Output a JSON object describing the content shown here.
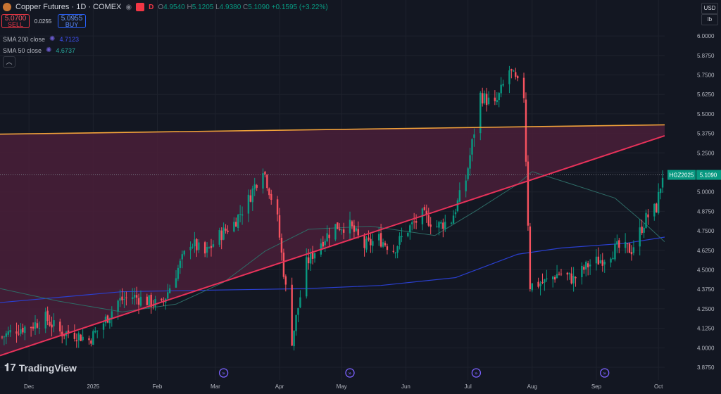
{
  "header": {
    "title": "Copper Futures · 1D · COMEX",
    "d_label": "D",
    "ohlc": {
      "o_k": "O",
      "o": "4.9540",
      "h_k": "H",
      "h": "5.1205",
      "l_k": "L",
      "l": "4.9380",
      "c_k": "C",
      "c": "5.1090",
      "chg": "+0.1595 (+3.22%)"
    }
  },
  "trade": {
    "sell_price": "5.0700",
    "sell_label": "SELL",
    "spread": "0.0255",
    "buy_price": "5.0955",
    "buy_label": "BUY"
  },
  "indicators": [
    {
      "label": "SMA 200 close",
      "value": "4.7123",
      "color": "#3f51f5"
    },
    {
      "label": "SMA 50 close",
      "value": "4.6737",
      "color": "#26a69a"
    }
  ],
  "units": {
    "currency": "USD",
    "unit": "lb"
  },
  "brand": "TradingView",
  "chart_data": {
    "type": "candlestick",
    "symbol_label": "HGZ2025",
    "last_price": "5.1090",
    "ylim": [
      3.83,
      6.05
    ],
    "y_ticks": [
      "6.0000",
      "5.8750",
      "5.7500",
      "5.6250",
      "5.5000",
      "5.3750",
      "5.2500",
      "5.1250",
      "5.0000",
      "4.8750",
      "4.7500",
      "4.6250",
      "4.5000",
      "4.3750",
      "4.2500",
      "4.1250",
      "4.0000",
      "3.8750"
    ],
    "x_ticks": [
      {
        "label": "Dec",
        "date": "2024-12-01"
      },
      {
        "label": "2025",
        "date": "2025-01-01"
      },
      {
        "label": "Feb",
        "date": "2025-02-01"
      },
      {
        "label": "Mar",
        "date": "2025-03-01"
      },
      {
        "label": "Apr",
        "date": "2025-04-01"
      },
      {
        "label": "May",
        "date": "2025-05-01"
      },
      {
        "label": "Jun",
        "date": "2025-06-01"
      },
      {
        "label": "Jul",
        "date": "2025-07-01"
      },
      {
        "label": "Aug",
        "date": "2025-08-01"
      },
      {
        "label": "Sep",
        "date": "2025-09-01"
      },
      {
        "label": "Oct",
        "date": "2025-10-01"
      }
    ],
    "date_range": [
      "2024-11-17",
      "2025-10-04"
    ],
    "event_markers": [
      "2025-03-05",
      "2025-05-05",
      "2025-07-05",
      "2025-09-05"
    ],
    "close_path": [
      [
        "2024-11-18",
        4.07
      ],
      [
        "2024-11-25",
        4.12
      ],
      [
        "2024-12-02",
        4.14
      ],
      [
        "2024-12-09",
        4.19
      ],
      [
        "2024-12-16",
        4.1
      ],
      [
        "2024-12-23",
        4.09
      ],
      [
        "2024-12-30",
        4.05
      ],
      [
        "2025-01-06",
        4.16
      ],
      [
        "2025-01-13",
        4.3
      ],
      [
        "2025-01-20",
        4.33
      ],
      [
        "2025-01-27",
        4.3
      ],
      [
        "2025-02-03",
        4.27
      ],
      [
        "2025-02-10",
        4.48
      ],
      [
        "2025-02-17",
        4.68
      ],
      [
        "2025-02-24",
        4.6
      ],
      [
        "2025-03-03",
        4.72
      ],
      [
        "2025-03-10",
        4.8
      ],
      [
        "2025-03-17",
        4.95
      ],
      [
        "2025-03-24",
        5.16
      ],
      [
        "2025-03-31",
        4.82
      ],
      [
        "2025-04-07",
        4.05
      ],
      [
        "2025-04-14",
        4.54
      ],
      [
        "2025-04-21",
        4.68
      ],
      [
        "2025-04-28",
        4.78
      ],
      [
        "2025-05-05",
        4.78
      ],
      [
        "2025-05-12",
        4.65
      ],
      [
        "2025-05-19",
        4.7
      ],
      [
        "2025-05-26",
        4.63
      ],
      [
        "2025-06-02",
        4.76
      ],
      [
        "2025-06-09",
        4.85
      ],
      [
        "2025-06-16",
        4.78
      ],
      [
        "2025-06-23",
        4.82
      ],
      [
        "2025-06-30",
        5.08
      ],
      [
        "2025-07-07",
        5.62
      ],
      [
        "2025-07-14",
        5.55
      ],
      [
        "2025-07-21",
        5.78
      ],
      [
        "2025-07-28",
        5.62
      ],
      [
        "2025-07-31",
        4.4
      ],
      [
        "2025-08-07",
        4.42
      ],
      [
        "2025-08-14",
        4.48
      ],
      [
        "2025-08-21",
        4.44
      ],
      [
        "2025-08-28",
        4.53
      ],
      [
        "2025-09-04",
        4.57
      ],
      [
        "2025-09-11",
        4.64
      ],
      [
        "2025-09-18",
        4.63
      ],
      [
        "2025-09-25",
        4.83
      ],
      [
        "2025-09-30",
        4.9
      ],
      [
        "2025-10-03",
        5.11
      ]
    ],
    "sma200": [
      [
        "2024-11-17",
        4.29
      ],
      [
        "2025-01-15",
        4.36
      ],
      [
        "2025-03-01",
        4.37
      ],
      [
        "2025-04-15",
        4.38
      ],
      [
        "2025-05-20",
        4.4
      ],
      [
        "2025-06-25",
        4.45
      ],
      [
        "2025-07-25",
        4.6
      ],
      [
        "2025-08-15",
        4.64
      ],
      [
        "2025-09-15",
        4.67
      ],
      [
        "2025-10-04",
        4.71
      ]
    ],
    "sma50": [
      [
        "2024-11-17",
        4.38
      ],
      [
        "2024-12-15",
        4.3
      ],
      [
        "2025-01-15",
        4.23
      ],
      [
        "2025-02-10",
        4.28
      ],
      [
        "2025-03-05",
        4.42
      ],
      [
        "2025-03-25",
        4.62
      ],
      [
        "2025-04-15",
        4.76
      ],
      [
        "2025-05-15",
        4.78
      ],
      [
        "2025-06-15",
        4.72
      ],
      [
        "2025-07-05",
        4.88
      ],
      [
        "2025-07-25",
        5.05
      ],
      [
        "2025-08-01",
        5.13
      ],
      [
        "2025-08-20",
        5.05
      ],
      [
        "2025-09-10",
        4.96
      ],
      [
        "2025-09-25",
        4.79
      ],
      [
        "2025-10-04",
        4.68
      ]
    ],
    "resistance_line": [
      [
        "2024-11-17",
        5.37
      ],
      [
        "2025-10-04",
        5.43
      ]
    ],
    "support_line": [
      [
        "2024-11-17",
        3.95
      ],
      [
        "2025-10-04",
        5.36
      ]
    ],
    "colors": {
      "up": "#089981",
      "down": "#f7525f",
      "sma200": "#2a3fd0",
      "sma50": "#2e6b66",
      "resistance": "#f2a33a",
      "support": "#e8325a",
      "fill": "#4a1f38"
    }
  }
}
